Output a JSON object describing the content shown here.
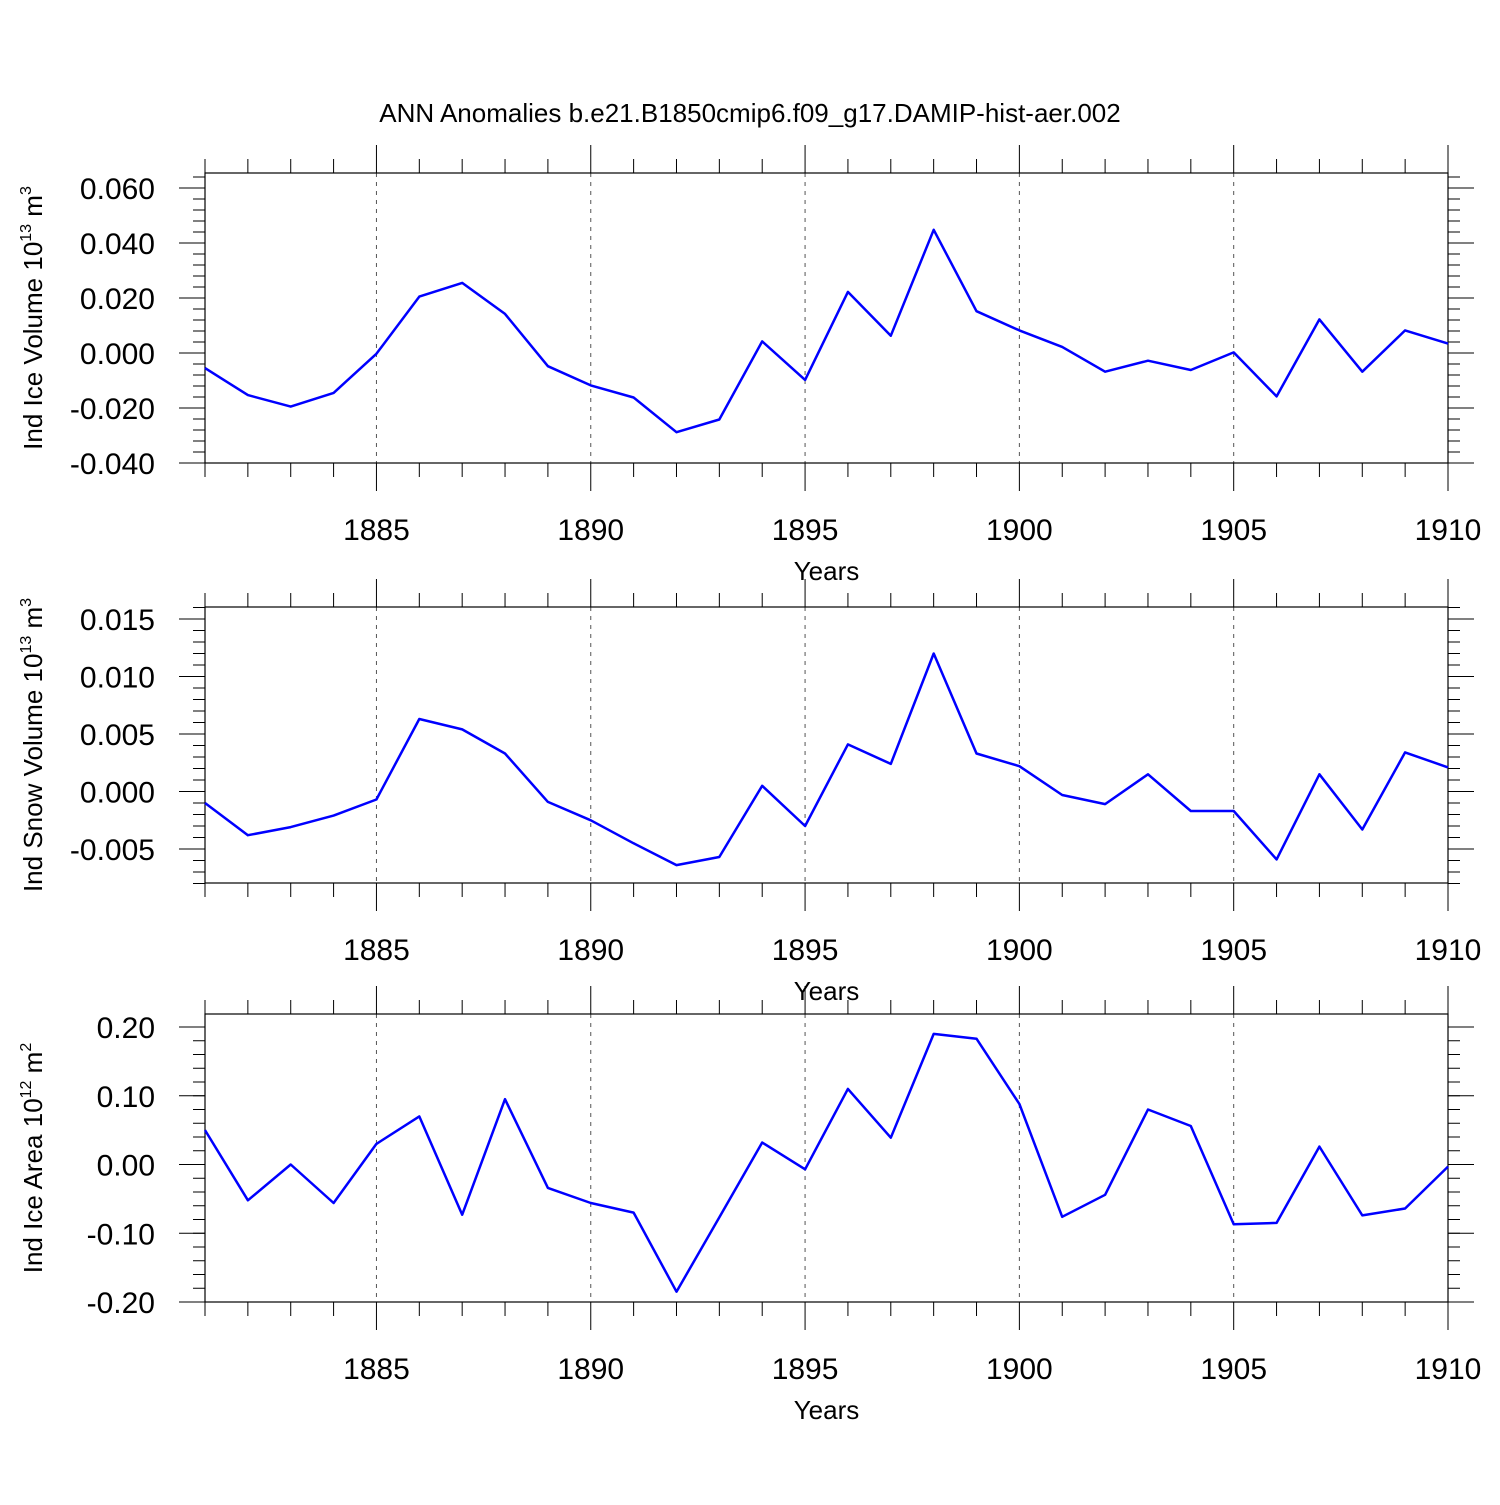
{
  "title": "ANN Anomalies b.e21.B1850cmip6.f09_g17.DAMIP-hist-aer.002",
  "colors": {
    "series": "#0000ff",
    "axis": "#000000",
    "grid": "#555555"
  },
  "chart_data": [
    {
      "type": "line",
      "ylabel": "Ind Ice Volume 10",
      "ylabel_sup": "13",
      "ylabel_unit": "m",
      "ylabel_unit_sup": "3",
      "xlabel": "Years",
      "xlim": [
        1881,
        1910
      ],
      "ylim": [
        -0.04,
        0.065
      ],
      "yticks": [
        -0.04,
        -0.02,
        0.0,
        0.02,
        0.04,
        0.06
      ],
      "ytick_labels": [
        "-0.040",
        "-0.020",
        "0.000",
        "0.020",
        "0.040",
        "0.060"
      ],
      "xticks": [
        1885,
        1890,
        1895,
        1900,
        1905,
        1910
      ],
      "xtick_labels": [
        "1885",
        "1890",
        "1895",
        "1900",
        "1905",
        "1910"
      ],
      "grid": "dashed vertical lines at major x ticks",
      "x": [
        1881,
        1882,
        1883,
        1884,
        1885,
        1886,
        1887,
        1888,
        1889,
        1890,
        1891,
        1892,
        1893,
        1894,
        1895,
        1896,
        1897,
        1898,
        1899,
        1900,
        1901,
        1902,
        1903,
        1904,
        1905,
        1906,
        1907,
        1908,
        1909,
        1910
      ],
      "values": [
        -0.0055,
        -0.0153,
        -0.0195,
        -0.0145,
        -0.0003,
        0.0205,
        0.0255,
        0.0142,
        -0.0048,
        -0.0118,
        -0.0162,
        -0.0288,
        -0.0242,
        0.0042,
        -0.0098,
        0.0222,
        0.0063,
        0.0448,
        0.0152,
        0.0082,
        0.0022,
        -0.0068,
        -0.0028,
        -0.0062,
        0.0002,
        -0.0158,
        0.0122,
        -0.0068,
        0.0082,
        0.0034
      ]
    },
    {
      "type": "line",
      "ylabel": "Ind Snow Volume 10",
      "ylabel_sup": "13",
      "ylabel_unit": "m",
      "ylabel_unit_sup": "3",
      "xlabel": "Years",
      "xlim": [
        1881,
        1910
      ],
      "ylim": [
        -0.008,
        0.016
      ],
      "yticks": [
        -0.005,
        0.0,
        0.005,
        0.01,
        0.015
      ],
      "ytick_labels": [
        "-0.005",
        "0.000",
        "0.005",
        "0.010",
        "0.015"
      ],
      "xticks": [
        1885,
        1890,
        1895,
        1900,
        1905,
        1910
      ],
      "xtick_labels": [
        "1885",
        "1890",
        "1895",
        "1900",
        "1905",
        "1910"
      ],
      "grid": "dashed vertical lines at major x ticks",
      "x": [
        1881,
        1882,
        1883,
        1884,
        1885,
        1886,
        1887,
        1888,
        1889,
        1890,
        1891,
        1892,
        1893,
        1894,
        1895,
        1896,
        1897,
        1898,
        1899,
        1900,
        1901,
        1902,
        1903,
        1904,
        1905,
        1906,
        1907,
        1908,
        1909,
        1910
      ],
      "values": [
        -0.001,
        -0.0038,
        -0.0031,
        -0.0021,
        -0.0007,
        0.0063,
        0.0054,
        0.0033,
        -0.0009,
        -0.0025,
        -0.0045,
        -0.0064,
        -0.0057,
        0.0005,
        -0.003,
        0.0041,
        0.0024,
        0.012,
        0.0033,
        0.0022,
        -0.0003,
        -0.0011,
        0.0015,
        -0.0017,
        -0.0017,
        -0.0059,
        0.0015,
        -0.0033,
        0.0034,
        0.0021
      ]
    },
    {
      "type": "line",
      "ylabel": "Ind Ice Area 10",
      "ylabel_sup": "12",
      "ylabel_unit": "m",
      "ylabel_unit_sup": "2",
      "xlabel": "Years",
      "xlim": [
        1881,
        1910
      ],
      "ylim": [
        -0.2,
        0.2
      ],
      "yticks": [
        -0.2,
        -0.1,
        0.0,
        0.1,
        0.2
      ],
      "ytick_labels": [
        "-0.20",
        "-0.10",
        "0.00",
        "0.10",
        "0.20"
      ],
      "xticks": [
        1885,
        1890,
        1895,
        1900,
        1905,
        1910
      ],
      "xtick_labels": [
        "1885",
        "1890",
        "1895",
        "1900",
        "1905",
        "1910"
      ],
      "grid": "dashed vertical lines at major x ticks",
      "x": [
        1881,
        1882,
        1883,
        1884,
        1885,
        1886,
        1887,
        1888,
        1889,
        1890,
        1891,
        1892,
        1893,
        1894,
        1895,
        1896,
        1897,
        1898,
        1899,
        1900,
        1901,
        1902,
        1903,
        1904,
        1905,
        1906,
        1907,
        1908,
        1909,
        1910
      ],
      "values": [
        0.05,
        -0.052,
        0.0,
        -0.056,
        0.03,
        0.07,
        -0.073,
        0.095,
        -0.034,
        -0.056,
        -0.07,
        -0.185,
        -0.077,
        0.032,
        -0.007,
        0.11,
        0.039,
        0.19,
        0.183,
        0.088,
        -0.076,
        -0.044,
        0.08,
        0.056,
        -0.087,
        -0.085,
        0.026,
        -0.074,
        -0.064,
        -0.003
      ]
    }
  ]
}
